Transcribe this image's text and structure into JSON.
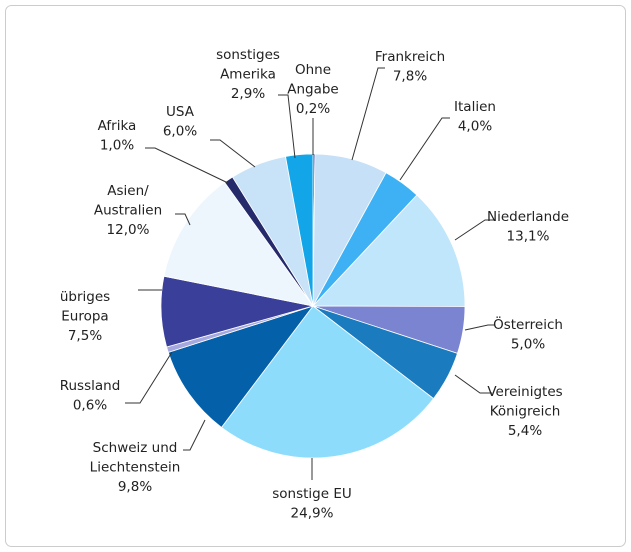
{
  "chart_data": {
    "type": "pie",
    "categories": [
      "Ohne\nAngabe",
      "Frankreich",
      "Italien",
      "Niederlande",
      "Österreich",
      "Vereinigtes\nKönigreich",
      "sonstige EU",
      "Schweiz und\nLiechtenstein",
      "Russland",
      "übriges\nEuropa",
      "Asien/\nAustralien",
      "Afrika",
      "USA",
      "sonstiges\nAmerika"
    ],
    "values": [
      0.2,
      7.8,
      4.0,
      13.1,
      5.0,
      5.4,
      24.9,
      9.8,
      0.6,
      7.5,
      12.0,
      1.0,
      6.0,
      2.9
    ],
    "value_labels": [
      "0,2%",
      "7,8%",
      "4,0%",
      "13,1%",
      "5,0%",
      "5,4%",
      "24,9%",
      "9,8%",
      "0,6%",
      "7,5%",
      "12,0%",
      "1,0%",
      "6,0%",
      "2,9%"
    ],
    "colors": [
      "#2b3a8c",
      "#c5e0f7",
      "#3eb1f5",
      "#bfe6fb",
      "#7b84d1",
      "#1a7bbf",
      "#8ddcfb",
      "#0460a8",
      "#a6a8e0",
      "#3a3f99",
      "#eef6fd",
      "#252a6b",
      "#c8e3f7",
      "#12a5e8"
    ]
  }
}
